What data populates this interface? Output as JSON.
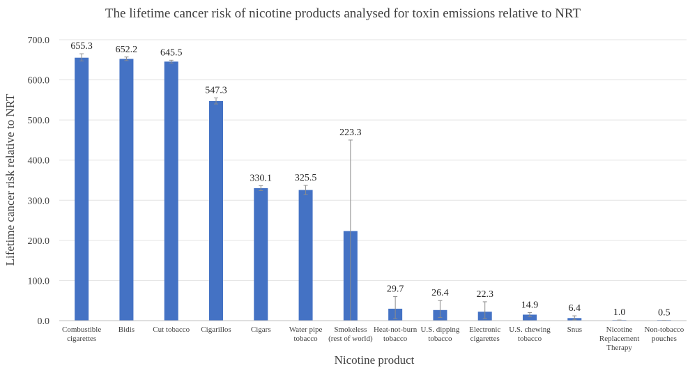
{
  "chart_data": {
    "type": "bar",
    "title": "The lifetime cancer risk of nicotine products analysed for toxin emissions relative to NRT",
    "xlabel": "Nicotine product",
    "ylabel": "Lifetime cancer risk relative to NRT",
    "ylim": [
      0,
      700
    ],
    "yticks": [
      "0.0",
      "100.0",
      "200.0",
      "300.0",
      "400.0",
      "500.0",
      "600.0",
      "700.0"
    ],
    "grid": true,
    "legend": "none",
    "bar_color": "#4472c4",
    "error_color": "#8c8c8c",
    "categories": [
      [
        "Combustible",
        "cigarettes"
      ],
      [
        "Bidis"
      ],
      [
        "Cut tobacco"
      ],
      [
        "Cigarillos"
      ],
      [
        "Cigars"
      ],
      [
        "Water pipe",
        "tobacco"
      ],
      [
        "Smokeless",
        "(rest of world)"
      ],
      [
        "Heat-not-burn",
        "tobacco"
      ],
      [
        "U.S. dipping",
        "tobacco"
      ],
      [
        "Electronic",
        "cigarettes"
      ],
      [
        "U.S. chewing",
        "tobacco"
      ],
      [
        "Snus"
      ],
      [
        "Nicotine",
        "Replacement",
        "Therapy"
      ],
      [
        "Non-tobacco",
        "pouches"
      ]
    ],
    "values": [
      655.3,
      652.2,
      645.5,
      547.3,
      330.1,
      325.5,
      223.3,
      29.7,
      26.4,
      22.3,
      14.9,
      6.4,
      1.0,
      0.5
    ],
    "value_labels": [
      "655.3",
      "652.2",
      "645.5",
      "547.3",
      "330.1",
      "325.5",
      "223.3",
      "29.7",
      "26.4",
      "22.3",
      "14.9",
      "6.4",
      "1.0",
      "0.5"
    ],
    "error_bars": [
      [
        647,
        665
      ],
      [
        648,
        657
      ],
      [
        642,
        649
      ],
      [
        540,
        555
      ],
      [
        324,
        336
      ],
      [
        314,
        337
      ],
      [
        0,
        450
      ],
      [
        5,
        60
      ],
      [
        8,
        50
      ],
      [
        5,
        47
      ],
      [
        10,
        20
      ],
      [
        2,
        12
      ],
      [
        0.5,
        1.5
      ],
      [
        0.2,
        0.8
      ]
    ]
  }
}
